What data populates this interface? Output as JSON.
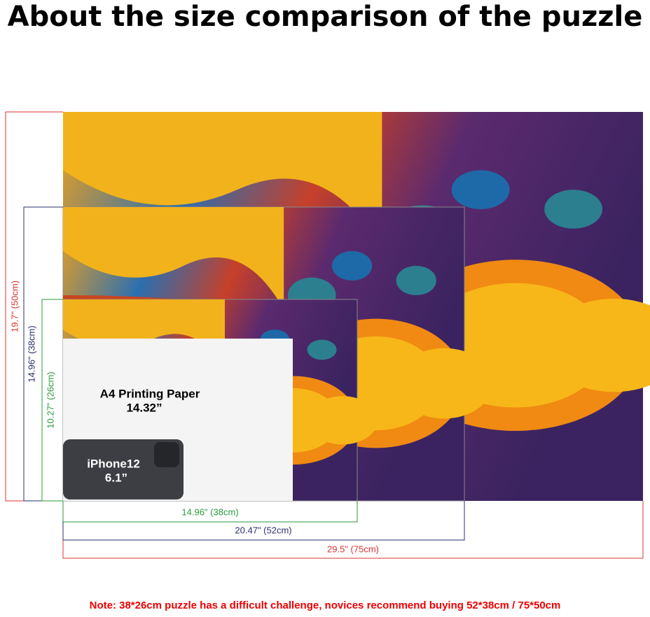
{
  "title": "About the size comparison of the puzzle",
  "heights": [
    "19.7\" (50cm)",
    "14.96\" (38cm)",
    "10.27\" (26cm)"
  ],
  "widths": [
    "14.96\" (38cm)",
    "20.47\" (52cm)",
    "29.5\" (75cm)"
  ],
  "paper": {
    "label": "A4 Printing Paper",
    "size": "14.32”"
  },
  "phone": {
    "label": "iPhone12",
    "size": "6.1”"
  },
  "note": "Note:  38*26cm puzzle has a difficult challenge, novices recommend buying 52*38cm / 75*50cm"
}
